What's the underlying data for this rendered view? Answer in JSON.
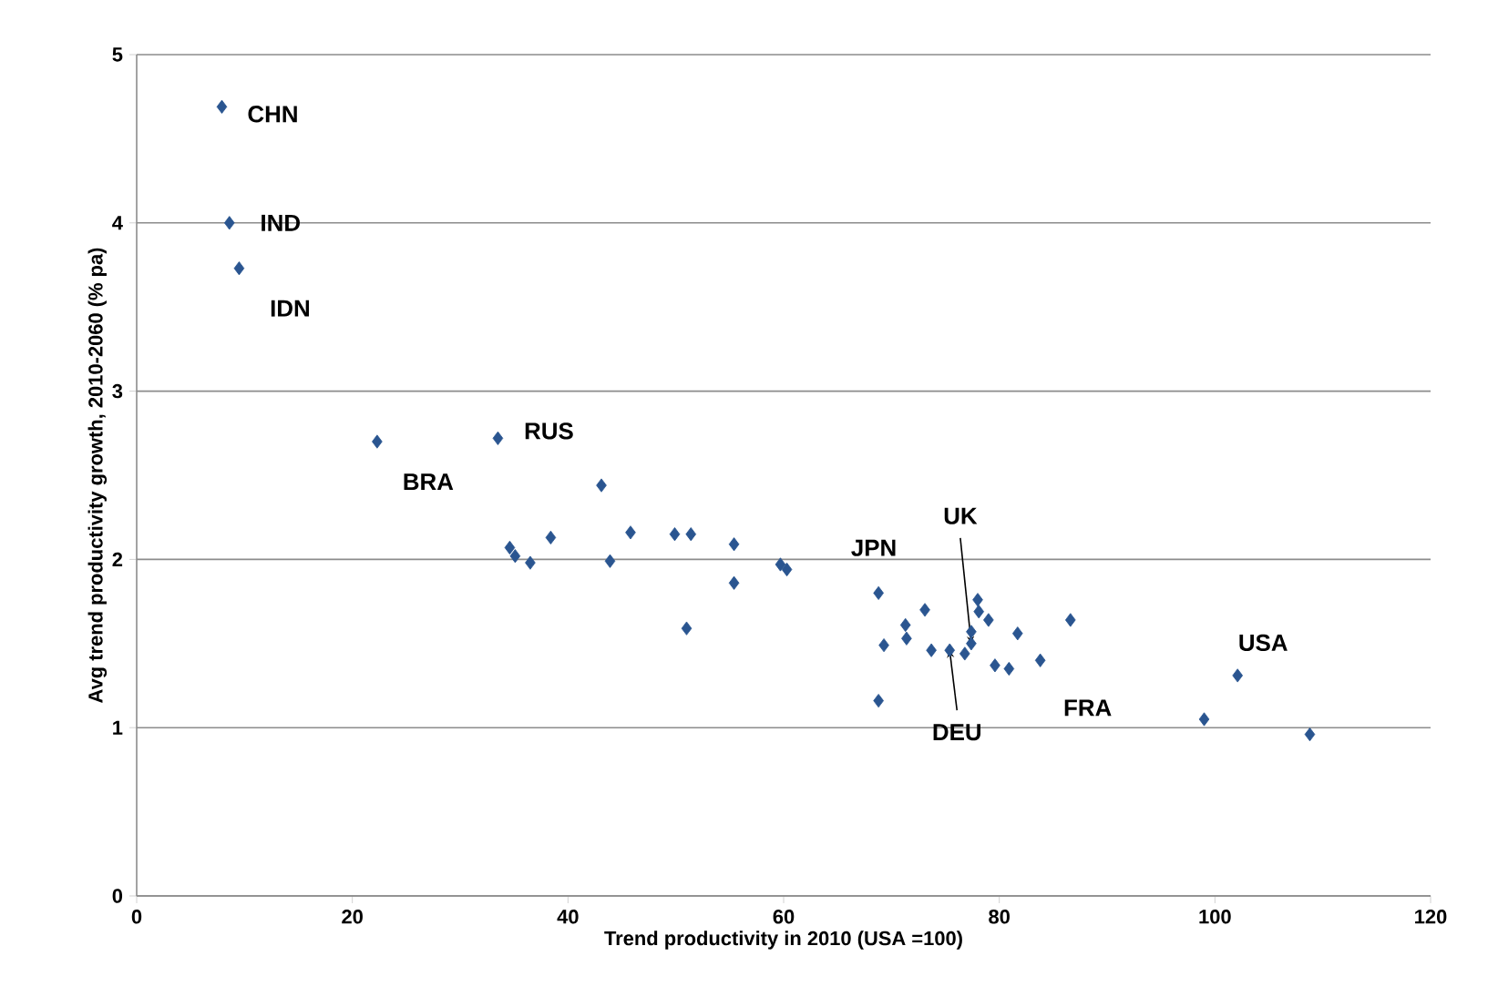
{
  "chart_data": {
    "type": "scatter",
    "xlabel": "Trend productivity  in 2010 (USA =100)",
    "ylabel": "Avg trend productivity growth, 2010-2060  (% pa)",
    "x": [
      7.9,
      8.6,
      9.5,
      22.3,
      33.5,
      43.1,
      34.6,
      35.1,
      36.5,
      38.4,
      43.9,
      45.8,
      49.9,
      51.4,
      51.0,
      55.4,
      55.4,
      59.7,
      60.3,
      68.8,
      69.3,
      71.3,
      71.4,
      73.1,
      73.7,
      75.4,
      68.8,
      78.0,
      78.1,
      79.0,
      77.4,
      77.4,
      76.8,
      81.7,
      79.6,
      80.9,
      83.8,
      86.6,
      99.0,
      102.1,
      108.8
    ],
    "values": [
      4.69,
      4.0,
      3.73,
      2.7,
      2.72,
      2.44,
      2.07,
      2.02,
      1.98,
      2.13,
      1.99,
      2.16,
      2.15,
      2.15,
      1.59,
      2.09,
      1.86,
      1.97,
      1.94,
      1.8,
      1.49,
      1.61,
      1.53,
      1.7,
      1.46,
      1.46,
      1.16,
      1.76,
      1.69,
      1.64,
      1.57,
      1.5,
      1.44,
      1.56,
      1.37,
      1.35,
      1.4,
      1.64,
      1.05,
      1.31,
      0.96
    ],
    "color": "#2a5590",
    "marker": "diamond",
    "xlim": [
      0,
      120
    ],
    "xticks": [
      0,
      20,
      40,
      60,
      80,
      100,
      120
    ],
    "ylim": [
      0,
      5
    ],
    "yticks": [
      0,
      1,
      2,
      3,
      4,
      5
    ],
    "grid": "y",
    "annotations": [
      {
        "text": "CHN",
        "x": 7.9,
        "y": 4.69
      },
      {
        "text": "IND",
        "x": 8.6,
        "y": 4.0
      },
      {
        "text": "IDN",
        "x": 9.5,
        "y": 3.73
      },
      {
        "text": "BRA",
        "x": 22.3,
        "y": 2.7
      },
      {
        "text": "RUS",
        "x": 33.5,
        "y": 2.72
      },
      {
        "text": "JPN",
        "x": 73.1,
        "y": 1.7
      },
      {
        "text": "UK",
        "x": 77.4,
        "y": 1.5
      },
      {
        "text": "DEU",
        "x": 75.4,
        "y": 1.46
      },
      {
        "text": "FRA",
        "x": 83.8,
        "y": 1.4
      },
      {
        "text": "USA",
        "x": 102.1,
        "y": 1.31
      }
    ]
  }
}
